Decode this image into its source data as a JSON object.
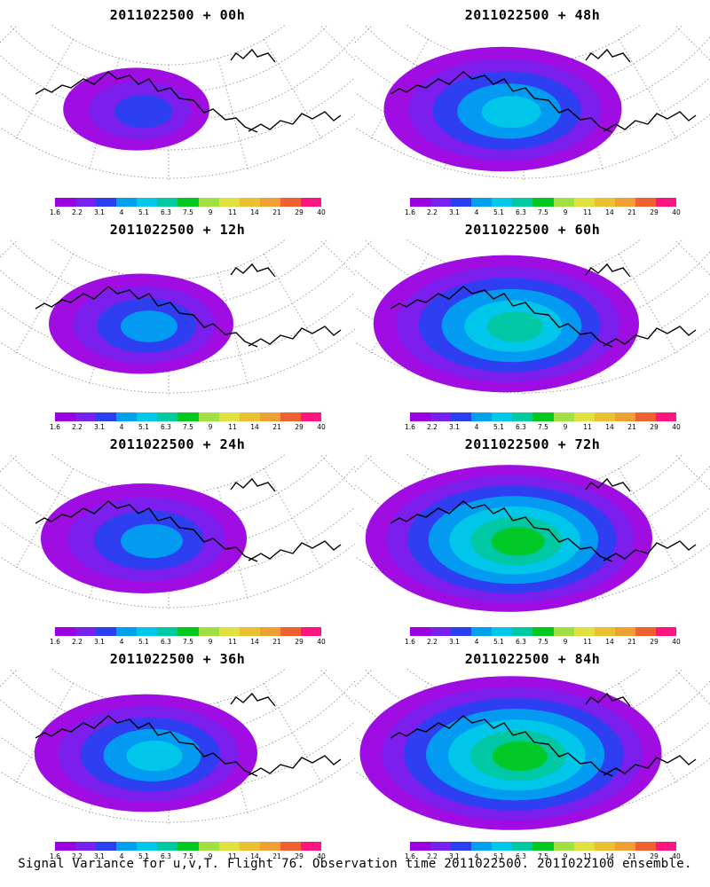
{
  "panels": [
    {
      "title": "2011022500 + 00h",
      "intensity": 0.12
    },
    {
      "title": "2011022500 + 48h",
      "intensity": 0.55
    },
    {
      "title": "2011022500 + 12h",
      "intensity": 0.3
    },
    {
      "title": "2011022500 + 60h",
      "intensity": 0.68
    },
    {
      "title": "2011022500 + 24h",
      "intensity": 0.4
    },
    {
      "title": "2011022500 + 72h",
      "intensity": 0.78
    },
    {
      "title": "2011022500 + 36h",
      "intensity": 0.48
    },
    {
      "title": "2011022500 + 84h",
      "intensity": 0.85
    }
  ],
  "colorbar": {
    "labels": [
      "1.6",
      "2.2",
      "3.1",
      "4",
      "5.1",
      "6.3",
      "7.5",
      "9",
      "11",
      "14",
      "21",
      "29",
      "40"
    ],
    "colors": [
      "#9a00e0",
      "#7a20ee",
      "#2a40f0",
      "#00a0f0",
      "#00c8e8",
      "#00c8a0",
      "#00c820",
      "#a0e040",
      "#e0e040",
      "#e8c030",
      "#f0a030",
      "#f06030",
      "#ff1480"
    ]
  },
  "footer": "Signal Variance for u,v,T. Flight 76. Observation time 2011022500. 2011022100 ensemble."
}
